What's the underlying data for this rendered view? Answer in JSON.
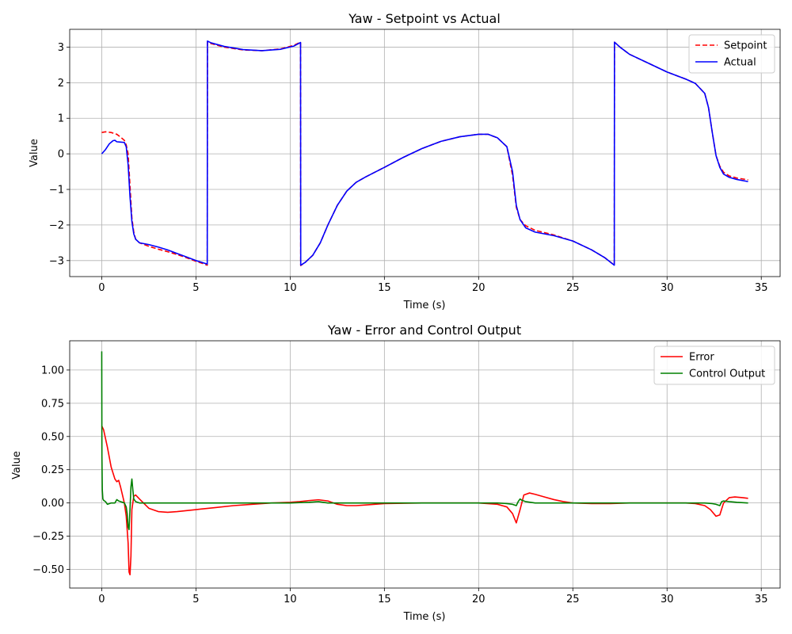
{
  "chart_data": [
    {
      "type": "line",
      "title": "Yaw - Setpoint vs Actual",
      "xlabel": "Time (s)",
      "ylabel": "Value",
      "xlim": [
        -1.7,
        36.0
      ],
      "ylim": [
        -3.45,
        3.5
      ],
      "xticks": [
        0,
        5,
        10,
        15,
        20,
        25,
        30,
        35
      ],
      "xtick_labels": [
        "0",
        "5",
        "10",
        "15",
        "20",
        "25",
        "30",
        "35"
      ],
      "yticks": [
        -3,
        -2,
        -1,
        0,
        1,
        2,
        3
      ],
      "ytick_labels": [
        "−3",
        "−2",
        "−1",
        "0",
        "1",
        "2",
        "3"
      ],
      "grid": true,
      "legend": "top-right",
      "series": [
        {
          "name": "Setpoint",
          "color": "#ff0000",
          "style": "dashed",
          "x": [
            0,
            0.2,
            0.5,
            0.8,
            1.0,
            1.2,
            1.3,
            1.4,
            1.5,
            1.6,
            1.7,
            1.8,
            2.0,
            2.5,
            3.0,
            3.5,
            4.0,
            4.5,
            5.0,
            5.3,
            5.6,
            5.61,
            5.8,
            6.5,
            7.5,
            8.5,
            9.5,
            10.2,
            10.55,
            10.56,
            10.8,
            11.2,
            11.6,
            12.0,
            12.5,
            13.0,
            13.5,
            14.0,
            15.0,
            16.0,
            17.0,
            18.0,
            19.0,
            20.0,
            20.5,
            21.0,
            21.5,
            21.8,
            22.0,
            22.2,
            22.5,
            23.0,
            24.0,
            25.0,
            26.0,
            26.7,
            27.2,
            27.21,
            27.5,
            28.0,
            29.0,
            30.0,
            31.0,
            31.5,
            32.0,
            32.2,
            32.4,
            32.6,
            32.8,
            33.0,
            33.3,
            33.7,
            34.3
          ],
          "y": [
            0.6,
            0.62,
            0.6,
            0.55,
            0.47,
            0.38,
            0.25,
            0.0,
            -0.9,
            -1.8,
            -2.2,
            -2.4,
            -2.5,
            -2.6,
            -2.68,
            -2.75,
            -2.83,
            -2.92,
            -3.02,
            -3.07,
            -3.13,
            3.14,
            3.1,
            3.0,
            2.92,
            2.9,
            2.95,
            3.05,
            3.14,
            -3.14,
            -3.05,
            -2.85,
            -2.5,
            -2.0,
            -1.45,
            -1.05,
            -0.8,
            -0.65,
            -0.38,
            -0.1,
            0.15,
            0.35,
            0.48,
            0.55,
            0.55,
            0.45,
            0.2,
            -0.6,
            -1.5,
            -1.85,
            -2.02,
            -2.15,
            -2.28,
            -2.45,
            -2.7,
            -2.92,
            -3.13,
            3.14,
            3.0,
            2.8,
            2.55,
            2.3,
            2.1,
            1.98,
            1.7,
            1.3,
            0.6,
            -0.05,
            -0.35,
            -0.52,
            -0.62,
            -0.68,
            -0.73
          ]
        },
        {
          "name": "Actual",
          "color": "#0000ff",
          "style": "solid",
          "x": [
            0,
            0.2,
            0.4,
            0.6,
            0.7,
            0.8,
            1.0,
            1.2,
            1.3,
            1.4,
            1.5,
            1.6,
            1.7,
            1.8,
            2.0,
            2.5,
            3.0,
            3.5,
            4.0,
            4.5,
            5.0,
            5.3,
            5.6,
            5.61,
            5.8,
            6.5,
            7.5,
            8.5,
            9.5,
            10.2,
            10.55,
            10.56,
            10.8,
            11.2,
            11.6,
            12.0,
            12.5,
            13.0,
            13.5,
            14.0,
            15.0,
            16.0,
            17.0,
            18.0,
            19.0,
            20.0,
            20.5,
            21.0,
            21.5,
            21.8,
            22.0,
            22.2,
            22.5,
            23.0,
            24.0,
            25.0,
            26.0,
            26.7,
            27.2,
            27.21,
            27.5,
            28.0,
            29.0,
            30.0,
            31.0,
            31.5,
            32.0,
            32.2,
            32.4,
            32.6,
            32.8,
            33.0,
            33.3,
            33.7,
            34.3
          ],
          "y": [
            0.0,
            0.12,
            0.28,
            0.37,
            0.38,
            0.34,
            0.33,
            0.32,
            0.2,
            -0.3,
            -1.2,
            -1.9,
            -2.25,
            -2.4,
            -2.5,
            -2.55,
            -2.62,
            -2.7,
            -2.8,
            -2.9,
            -3.0,
            -3.05,
            -3.1,
            3.17,
            3.12,
            3.02,
            2.93,
            2.9,
            2.94,
            3.03,
            3.13,
            -3.13,
            -3.05,
            -2.85,
            -2.5,
            -2.0,
            -1.45,
            -1.05,
            -0.8,
            -0.65,
            -0.38,
            -0.1,
            0.15,
            0.35,
            0.48,
            0.55,
            0.55,
            0.45,
            0.2,
            -0.5,
            -1.45,
            -1.85,
            -2.08,
            -2.2,
            -2.3,
            -2.45,
            -2.7,
            -2.92,
            -3.13,
            3.14,
            3.0,
            2.8,
            2.55,
            2.3,
            2.1,
            1.98,
            1.7,
            1.3,
            0.6,
            -0.05,
            -0.38,
            -0.57,
            -0.66,
            -0.72,
            -0.78
          ]
        }
      ]
    },
    {
      "type": "line",
      "title": "Yaw - Error and Control Output",
      "xlabel": "Time (s)",
      "ylabel": "Value",
      "xlim": [
        -1.7,
        36.0
      ],
      "ylim": [
        -0.64,
        1.22
      ],
      "xticks": [
        0,
        5,
        10,
        15,
        20,
        25,
        30,
        35
      ],
      "xtick_labels": [
        "0",
        "5",
        "10",
        "15",
        "20",
        "25",
        "30",
        "35"
      ],
      "yticks": [
        -0.5,
        -0.25,
        0.0,
        0.25,
        0.5,
        0.75,
        1.0
      ],
      "ytick_labels": [
        "−0.50",
        "−0.25",
        "0.00",
        "0.25",
        "0.50",
        "0.75",
        "1.00"
      ],
      "grid": true,
      "legend": "top-right",
      "series": [
        {
          "name": "Error",
          "color": "#ff0000",
          "style": "solid",
          "x": [
            0,
            0.1,
            0.3,
            0.5,
            0.7,
            0.8,
            0.9,
            1.0,
            1.1,
            1.2,
            1.3,
            1.4,
            1.45,
            1.5,
            1.55,
            1.6,
            1.7,
            1.8,
            2.0,
            2.5,
            3.0,
            3.5,
            4.0,
            5.0,
            6.0,
            7.0,
            8.0,
            9.0,
            10.0,
            10.5,
            11.0,
            11.5,
            12.0,
            12.5,
            13.0,
            13.5,
            14.0,
            14.5,
            15.0,
            17.0,
            19.0,
            20.0,
            21.0,
            21.5,
            21.8,
            22.0,
            22.2,
            22.4,
            22.7,
            23.0,
            23.5,
            24.0,
            24.5,
            25.0,
            26.0,
            27.0,
            28.0,
            29.0,
            30.0,
            31.0,
            31.5,
            32.0,
            32.3,
            32.6,
            32.8,
            33.0,
            33.3,
            33.6,
            34.0,
            34.3
          ],
          "y": [
            0.58,
            0.55,
            0.42,
            0.27,
            0.18,
            0.16,
            0.17,
            0.12,
            0.06,
            0.0,
            -0.1,
            -0.3,
            -0.52,
            -0.54,
            -0.4,
            -0.05,
            0.05,
            0.06,
            0.03,
            -0.04,
            -0.065,
            -0.07,
            -0.065,
            -0.05,
            -0.035,
            -0.02,
            -0.01,
            0.0,
            0.005,
            0.01,
            0.018,
            0.024,
            0.015,
            -0.01,
            -0.02,
            -0.02,
            -0.015,
            -0.01,
            -0.005,
            0.0,
            0.0,
            0.0,
            -0.01,
            -0.03,
            -0.08,
            -0.15,
            -0.05,
            0.06,
            0.075,
            0.065,
            0.045,
            0.025,
            0.01,
            0.0,
            -0.005,
            -0.005,
            0.0,
            0.0,
            0.0,
            0.0,
            -0.005,
            -0.02,
            -0.05,
            -0.1,
            -0.09,
            0.0,
            0.04,
            0.045,
            0.04,
            0.035
          ]
        },
        {
          "name": "Control Output",
          "color": "#008000",
          "style": "solid",
          "x": [
            0,
            0.01,
            0.03,
            0.06,
            0.1,
            0.2,
            0.3,
            0.5,
            0.7,
            0.8,
            0.9,
            1.0,
            1.1,
            1.2,
            1.3,
            1.35,
            1.4,
            1.45,
            1.5,
            1.55,
            1.6,
            1.65,
            1.7,
            1.8,
            2.0,
            3.0,
            5.0,
            8.0,
            10.0,
            11.0,
            11.5,
            12.0,
            13.0,
            14.0,
            15.0,
            20.0,
            21.0,
            21.5,
            21.8,
            22.0,
            22.1,
            22.2,
            22.3,
            22.5,
            23.0,
            25.0,
            30.0,
            32.0,
            32.4,
            32.6,
            32.8,
            32.9,
            33.0,
            33.3,
            33.7,
            34.3
          ],
          "y": [
            1.14,
            0.35,
            0.1,
            0.03,
            0.02,
            0.01,
            -0.01,
            0.0,
            0.0,
            0.025,
            0.015,
            0.01,
            0.005,
            0.0,
            -0.03,
            -0.08,
            -0.18,
            -0.2,
            -0.05,
            0.12,
            0.18,
            0.1,
            0.03,
            0.01,
            0.0,
            0.0,
            0.0,
            0.0,
            0.0,
            0.005,
            0.01,
            0.0,
            0.0,
            0.0,
            0.0,
            0.0,
            0.0,
            -0.005,
            -0.01,
            -0.02,
            0.01,
            0.03,
            0.02,
            0.01,
            0.0,
            0.0,
            0.0,
            0.0,
            -0.005,
            -0.01,
            -0.02,
            0.01,
            0.015,
            0.01,
            0.005,
            0.0
          ]
        }
      ]
    }
  ]
}
